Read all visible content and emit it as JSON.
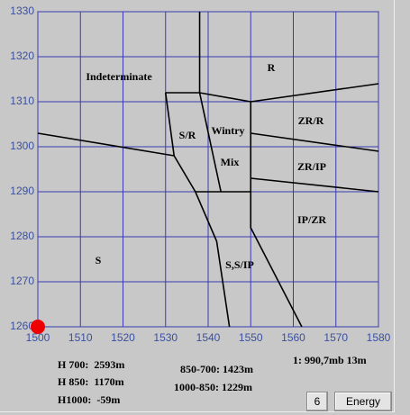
{
  "chart_data": {
    "type": "nomogram",
    "xlim": [
      1500,
      1580
    ],
    "xticks": [
      1500,
      1510,
      1520,
      1530,
      1540,
      1550,
      1560,
      1570,
      1580
    ],
    "ylim": [
      1260,
      1330
    ],
    "yticks": [
      1260,
      1270,
      1280,
      1290,
      1300,
      1310,
      1320,
      1330
    ],
    "grid": true,
    "grid_color": "#3a3ab0",
    "line_color": "#000000",
    "regions": [
      "Indeterminate",
      "R",
      "S/R",
      "Wintry",
      "Mix",
      "ZR/R",
      "ZR/IP",
      "IP/ZR",
      "S",
      "S,S/IP"
    ],
    "boundaries": [
      {
        "x": [
          1538,
          1538
        ],
        "y": [
          1330,
          1312
        ]
      },
      {
        "x": [
          1530,
          1538,
          1550,
          1580
        ],
        "y": [
          1312,
          1312,
          1310,
          1314
        ]
      },
      {
        "x": [
          1530,
          1532,
          1537,
          1542,
          1545
        ],
        "y": [
          1312,
          1298,
          1290,
          1279,
          1260
        ]
      },
      {
        "x": [
          1500,
          1532
        ],
        "y": [
          1303,
          1298
        ]
      },
      {
        "x": [
          1538,
          1543
        ],
        "y": [
          1312,
          1290
        ]
      },
      {
        "x": [
          1550,
          1550,
          1562
        ],
        "y": [
          1310,
          1282,
          1260
        ]
      },
      {
        "x": [
          1537,
          1550
        ],
        "y": [
          1290,
          1290
        ]
      },
      {
        "x": [
          1550,
          1580
        ],
        "y": [
          1303,
          1299
        ]
      },
      {
        "x": [
          1550,
          1580
        ],
        "y": [
          1293,
          1290
        ]
      }
    ],
    "point": {
      "x": 1500,
      "y": 1260,
      "color": "#ee0000"
    }
  },
  "info": {
    "h700": "H 700:  2593m",
    "h850": "H 850:  1170m",
    "h1000": "H1000:  -59m",
    "thick_850_700": "850-700: 1423m",
    "thick_1000_850": "1000-850: 1229m",
    "level": "1: 990,7mb 13m"
  },
  "buttons": {
    "number": "6",
    "energy": "Energy"
  }
}
